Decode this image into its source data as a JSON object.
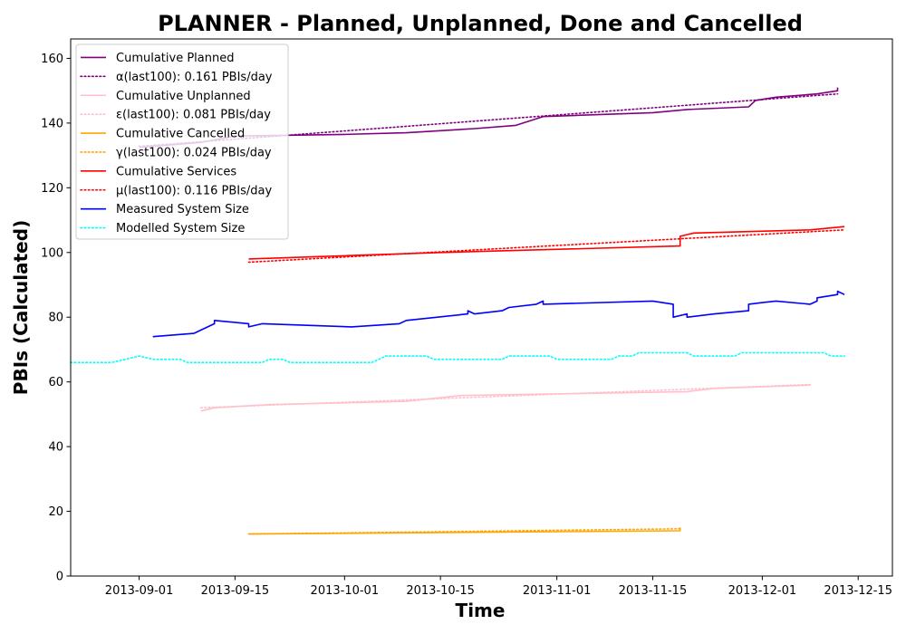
{
  "chart_data": {
    "type": "line",
    "title": "PLANNER - Planned, Unplanned, Done  and Cancelled",
    "xlabel": "Time",
    "ylabel": "PBIs (Calculated)",
    "xlim": [
      "2013-08-22",
      "2013-12-20"
    ],
    "ylim": [
      0,
      166
    ],
    "x_ticks": [
      "2013-09-01",
      "2013-09-15",
      "2013-10-01",
      "2013-10-15",
      "2013-11-01",
      "2013-11-15",
      "2013-12-01",
      "2013-12-15"
    ],
    "y_ticks": [
      0,
      20,
      40,
      60,
      80,
      100,
      120,
      140,
      160
    ],
    "grid": false,
    "legend_position": "top-left",
    "series": [
      {
        "name": "Cumulative Planned",
        "color": "#800080",
        "style": "solid",
        "x": [
          "2013-09-01",
          "2013-09-10",
          "2013-09-15",
          "2013-10-01",
          "2013-10-10",
          "2013-10-20",
          "2013-10-26",
          "2013-10-30",
          "2013-11-15",
          "2013-11-20",
          "2013-11-29",
          "2013-11-30",
          "2013-12-03",
          "2013-12-09",
          "2013-12-12",
          "2013-12-12"
        ],
        "y": [
          132.5,
          134.0,
          136.0,
          136.5,
          137.0,
          138.3,
          139.3,
          142.0,
          143.2,
          144.2,
          145.0,
          147.0,
          148.0,
          149.0,
          150.0,
          151.0
        ]
      },
      {
        "name": "α(last100): 0.161 PBIs/day",
        "color": "#800080",
        "style": "dotted",
        "x": [
          "2013-09-01",
          "2013-12-12"
        ],
        "y": [
          132.8,
          149.0
        ]
      },
      {
        "name": "Cumulative Unplanned",
        "color": "#ffc0cb",
        "style": "solid",
        "x": [
          "2013-09-10",
          "2013-09-12",
          "2013-09-20",
          "2013-10-10",
          "2013-10-18",
          "2013-11-20",
          "2013-11-24",
          "2013-12-08"
        ],
        "y": [
          51.0,
          52.0,
          53.0,
          54.0,
          55.8,
          57.0,
          58.0,
          59.0
        ]
      },
      {
        "name": "ε(last100): 0.081 PBIs/day",
        "color": "#ffc0cb",
        "style": "dotted",
        "x": [
          "2013-09-10",
          "2013-12-08"
        ],
        "y": [
          52.0,
          59.2
        ]
      },
      {
        "name": "Cumulative Cancelled",
        "color": "#ffa500",
        "style": "solid",
        "x": [
          "2013-09-17",
          "2013-11-19",
          "2013-11-19"
        ],
        "y": [
          13.0,
          14.0,
          15.0
        ]
      },
      {
        "name": "γ(last100): 0.024 PBIs/day",
        "color": "#ffa500",
        "style": "dotted",
        "x": [
          "2013-09-17",
          "2013-11-19"
        ],
        "y": [
          13.0,
          14.6
        ]
      },
      {
        "name": "Cumulative Services",
        "color": "#ff0000",
        "style": "solid",
        "x": [
          "2013-09-17",
          "2013-10-15",
          "2013-11-19",
          "2013-11-19",
          "2013-11-21",
          "2013-12-08",
          "2013-12-13"
        ],
        "y": [
          98.0,
          100.0,
          102.0,
          105.0,
          106.0,
          107.0,
          108.0
        ]
      },
      {
        "name": "μ(last100): 0.116 PBIs/day",
        "color": "#ff0000",
        "style": "dotted",
        "x": [
          "2013-09-17",
          "2013-12-13"
        ],
        "y": [
          97.0,
          107.0
        ]
      },
      {
        "name": "Measured System Size",
        "color": "#0000ff",
        "style": "solid",
        "x": [
          "2013-09-03",
          "2013-09-09",
          "2013-09-10",
          "2013-09-12",
          "2013-09-12",
          "2013-09-17",
          "2013-09-17",
          "2013-09-19",
          "2013-10-02",
          "2013-10-09",
          "2013-10-10",
          "2013-10-19",
          "2013-10-19",
          "2013-10-20",
          "2013-10-24",
          "2013-10-25",
          "2013-10-29",
          "2013-10-30",
          "2013-10-30",
          "2013-11-15",
          "2013-11-18",
          "2013-11-18",
          "2013-11-20",
          "2013-11-20",
          "2013-11-24",
          "2013-11-29",
          "2013-11-29",
          "2013-12-01",
          "2013-12-03",
          "2013-12-08",
          "2013-12-09",
          "2013-12-09",
          "2013-12-12",
          "2013-12-12",
          "2013-12-13"
        ],
        "y": [
          74.0,
          75.0,
          76.0,
          78.0,
          79.0,
          78.0,
          77.0,
          78.0,
          77.0,
          78.0,
          79.0,
          81.0,
          82.0,
          81.0,
          82.0,
          83.0,
          84.0,
          85.0,
          84.0,
          85.0,
          84.0,
          80.0,
          81.0,
          80.0,
          81.0,
          82.0,
          84.0,
          84.5,
          85.0,
          84.0,
          85.0,
          86.0,
          87.0,
          88.0,
          87.0
        ]
      },
      {
        "name": "Modelled System Size",
        "color": "#00ffff",
        "style": "dotted",
        "x": [
          "2013-08-22",
          "2013-08-28",
          "2013-08-30",
          "2013-09-01",
          "2013-09-03",
          "2013-09-07",
          "2013-09-08",
          "2013-09-19",
          "2013-09-20",
          "2013-09-22",
          "2013-09-23",
          "2013-10-05",
          "2013-10-06",
          "2013-10-07",
          "2013-10-13",
          "2013-10-14",
          "2013-10-24",
          "2013-10-25",
          "2013-10-31",
          "2013-11-01",
          "2013-11-09",
          "2013-11-10",
          "2013-11-12",
          "2013-11-13",
          "2013-11-20",
          "2013-11-21",
          "2013-11-27",
          "2013-11-28",
          "2013-12-10",
          "2013-12-11",
          "2013-12-13"
        ],
        "y": [
          66.0,
          66.0,
          67.0,
          68.0,
          67.0,
          67.0,
          66.0,
          66.0,
          67.0,
          67.0,
          66.0,
          66.0,
          67.0,
          68.0,
          68.0,
          67.0,
          67.0,
          68.0,
          68.0,
          67.0,
          67.0,
          68.0,
          68.0,
          69.0,
          69.0,
          68.0,
          68.0,
          69.0,
          69.0,
          68.0,
          68.0
        ]
      }
    ]
  }
}
